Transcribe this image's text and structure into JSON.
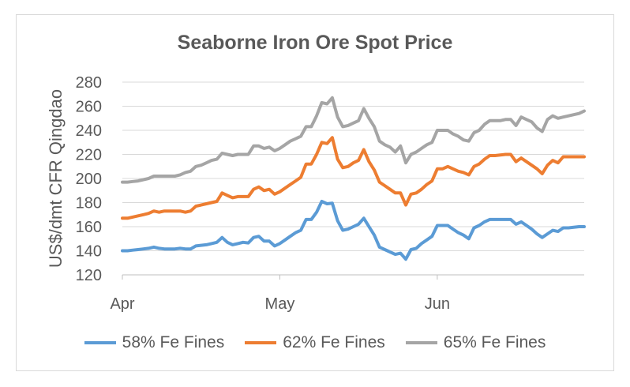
{
  "chart_data": {
    "type": "line",
    "title": "Seaborne Iron Ore Spot Price",
    "xlabel": "",
    "ylabel": "US$/dmt CFR Qingdao",
    "ylim": [
      120,
      280
    ],
    "yticks": [
      120,
      140,
      160,
      180,
      200,
      220,
      240,
      260,
      280
    ],
    "xlim": [
      0,
      88
    ],
    "xticks": [
      {
        "x": 0,
        "label": "Apr"
      },
      {
        "x": 30,
        "label": "May"
      },
      {
        "x": 60,
        "label": "Jun"
      }
    ],
    "grid": true,
    "legend": "bottom",
    "series": [
      {
        "name": "58% Fe Fines",
        "color": "#5b9bd5",
        "points": [
          [
            0,
            140
          ],
          [
            1,
            140
          ],
          [
            2,
            140.5
          ],
          [
            3,
            141
          ],
          [
            4,
            141.5
          ],
          [
            5,
            142
          ],
          [
            6,
            143
          ],
          [
            7,
            142
          ],
          [
            8,
            141.5
          ],
          [
            9,
            141.5
          ],
          [
            10,
            141.5
          ],
          [
            11,
            142
          ],
          [
            12,
            141.5
          ],
          [
            13,
            141.5
          ],
          [
            14,
            144
          ],
          [
            15,
            144.5
          ],
          [
            16,
            145
          ],
          [
            17,
            146
          ],
          [
            18,
            147
          ],
          [
            19,
            151
          ],
          [
            20,
            147
          ],
          [
            21,
            145
          ],
          [
            22,
            146
          ],
          [
            23,
            147
          ],
          [
            24,
            146.5
          ],
          [
            25,
            151
          ],
          [
            26,
            152
          ],
          [
            27,
            148
          ],
          [
            28,
            148
          ],
          [
            29,
            144
          ],
          [
            30,
            146
          ],
          [
            31,
            149
          ],
          [
            32,
            152
          ],
          [
            33,
            155
          ],
          [
            34,
            157
          ],
          [
            35,
            166
          ],
          [
            36,
            166
          ],
          [
            37,
            172
          ],
          [
            38,
            181
          ],
          [
            39,
            179
          ],
          [
            40,
            179.5
          ],
          [
            41,
            165
          ],
          [
            42,
            157
          ],
          [
            43,
            158
          ],
          [
            44,
            160
          ],
          [
            45,
            162
          ],
          [
            46,
            167
          ],
          [
            47,
            160
          ],
          [
            48,
            153
          ],
          [
            49,
            143
          ],
          [
            50,
            141
          ],
          [
            51,
            139
          ],
          [
            52,
            137
          ],
          [
            53,
            138
          ],
          [
            54,
            133
          ],
          [
            55,
            141
          ],
          [
            56,
            142
          ],
          [
            57,
            146
          ],
          [
            58,
            149
          ],
          [
            59,
            152
          ],
          [
            60,
            161
          ],
          [
            61,
            161
          ],
          [
            62,
            161
          ],
          [
            63,
            158
          ],
          [
            64,
            155
          ],
          [
            65,
            153
          ],
          [
            66,
            150
          ],
          [
            67,
            159
          ],
          [
            68,
            161
          ],
          [
            69,
            164
          ],
          [
            70,
            166
          ],
          [
            71,
            166
          ],
          [
            72,
            166
          ],
          [
            73,
            166
          ],
          [
            74,
            166
          ],
          [
            75,
            162
          ],
          [
            76,
            164
          ],
          [
            77,
            161
          ],
          [
            78,
            158
          ],
          [
            79,
            154
          ],
          [
            80,
            151
          ],
          [
            81,
            154
          ],
          [
            82,
            157
          ],
          [
            83,
            156
          ],
          [
            84,
            159
          ],
          [
            85,
            159
          ],
          [
            86,
            159.5
          ],
          [
            87,
            160
          ],
          [
            88,
            160
          ]
        ]
      },
      {
        "name": "62% Fe Fines",
        "color": "#ed7d31",
        "points": [
          [
            0,
            167
          ],
          [
            1,
            167
          ],
          [
            2,
            168
          ],
          [
            3,
            169
          ],
          [
            4,
            170
          ],
          [
            5,
            171
          ],
          [
            6,
            173
          ],
          [
            7,
            172
          ],
          [
            8,
            173
          ],
          [
            9,
            173
          ],
          [
            10,
            173
          ],
          [
            11,
            173
          ],
          [
            12,
            172
          ],
          [
            13,
            173
          ],
          [
            14,
            177
          ],
          [
            15,
            178
          ],
          [
            16,
            179
          ],
          [
            17,
            180
          ],
          [
            18,
            181
          ],
          [
            19,
            188
          ],
          [
            20,
            186
          ],
          [
            21,
            184
          ],
          [
            22,
            185
          ],
          [
            23,
            185
          ],
          [
            24,
            185
          ],
          [
            25,
            191
          ],
          [
            26,
            193
          ],
          [
            27,
            190
          ],
          [
            28,
            191
          ],
          [
            29,
            187
          ],
          [
            30,
            189
          ],
          [
            31,
            192
          ],
          [
            32,
            195
          ],
          [
            33,
            198
          ],
          [
            34,
            201
          ],
          [
            35,
            212
          ],
          [
            36,
            212
          ],
          [
            37,
            220
          ],
          [
            38,
            230
          ],
          [
            39,
            229
          ],
          [
            40,
            234
          ],
          [
            41,
            216
          ],
          [
            42,
            209
          ],
          [
            43,
            210
          ],
          [
            44,
            213
          ],
          [
            45,
            215
          ],
          [
            46,
            224
          ],
          [
            47,
            214
          ],
          [
            48,
            207
          ],
          [
            49,
            197
          ],
          [
            50,
            194
          ],
          [
            51,
            191
          ],
          [
            52,
            188
          ],
          [
            53,
            188
          ],
          [
            54,
            178
          ],
          [
            55,
            187
          ],
          [
            56,
            188
          ],
          [
            57,
            191
          ],
          [
            58,
            195
          ],
          [
            59,
            198
          ],
          [
            60,
            208
          ],
          [
            61,
            208
          ],
          [
            62,
            210
          ],
          [
            63,
            208
          ],
          [
            64,
            206
          ],
          [
            65,
            205
          ],
          [
            66,
            203
          ],
          [
            67,
            210
          ],
          [
            68,
            212
          ],
          [
            69,
            216
          ],
          [
            70,
            219
          ],
          [
            71,
            219
          ],
          [
            72,
            219.5
          ],
          [
            73,
            220
          ],
          [
            74,
            220
          ],
          [
            75,
            214
          ],
          [
            76,
            217
          ],
          [
            77,
            214
          ],
          [
            78,
            211
          ],
          [
            79,
            208
          ],
          [
            80,
            204
          ],
          [
            81,
            211
          ],
          [
            82,
            215
          ],
          [
            83,
            213
          ],
          [
            84,
            218
          ],
          [
            85,
            218
          ],
          [
            86,
            218
          ],
          [
            87,
            218
          ],
          [
            88,
            218
          ]
        ]
      },
      {
        "name": "65% Fe Fines",
        "color": "#a5a5a5",
        "points": [
          [
            0,
            197
          ],
          [
            1,
            197
          ],
          [
            2,
            197.5
          ],
          [
            3,
            198
          ],
          [
            4,
            199
          ],
          [
            5,
            200
          ],
          [
            6,
            202
          ],
          [
            7,
            202
          ],
          [
            8,
            202
          ],
          [
            9,
            202
          ],
          [
            10,
            202
          ],
          [
            11,
            203
          ],
          [
            12,
            205
          ],
          [
            13,
            206
          ],
          [
            14,
            210
          ],
          [
            15,
            211
          ],
          [
            16,
            213
          ],
          [
            17,
            215
          ],
          [
            18,
            216
          ],
          [
            19,
            221
          ],
          [
            20,
            220
          ],
          [
            21,
            219
          ],
          [
            22,
            220
          ],
          [
            23,
            220
          ],
          [
            24,
            220
          ],
          [
            25,
            227
          ],
          [
            26,
            227
          ],
          [
            27,
            225
          ],
          [
            28,
            226
          ],
          [
            29,
            223
          ],
          [
            30,
            225
          ],
          [
            31,
            228
          ],
          [
            32,
            231
          ],
          [
            33,
            233
          ],
          [
            34,
            235
          ],
          [
            35,
            243
          ],
          [
            36,
            243
          ],
          [
            37,
            252
          ],
          [
            38,
            263
          ],
          [
            39,
            262
          ],
          [
            40,
            267
          ],
          [
            41,
            251
          ],
          [
            42,
            243
          ],
          [
            43,
            244
          ],
          [
            44,
            246
          ],
          [
            45,
            248
          ],
          [
            46,
            258
          ],
          [
            47,
            250
          ],
          [
            48,
            243
          ],
          [
            49,
            231
          ],
          [
            50,
            228
          ],
          [
            51,
            226
          ],
          [
            52,
            222
          ],
          [
            53,
            227
          ],
          [
            54,
            213
          ],
          [
            55,
            220
          ],
          [
            56,
            222
          ],
          [
            57,
            225
          ],
          [
            58,
            228
          ],
          [
            59,
            230
          ],
          [
            60,
            240
          ],
          [
            61,
            240
          ],
          [
            62,
            240
          ],
          [
            63,
            237
          ],
          [
            64,
            235
          ],
          [
            65,
            232
          ],
          [
            66,
            231
          ],
          [
            67,
            238
          ],
          [
            68,
            240
          ],
          [
            69,
            245
          ],
          [
            70,
            248
          ],
          [
            71,
            248
          ],
          [
            72,
            248
          ],
          [
            73,
            249
          ],
          [
            74,
            249
          ],
          [
            75,
            244
          ],
          [
            76,
            251
          ],
          [
            77,
            249
          ],
          [
            78,
            247
          ],
          [
            79,
            242
          ],
          [
            80,
            239
          ],
          [
            81,
            249
          ],
          [
            82,
            252
          ],
          [
            83,
            250
          ],
          [
            84,
            251
          ],
          [
            85,
            252
          ],
          [
            86,
            253
          ],
          [
            87,
            254
          ],
          [
            88,
            256
          ]
        ]
      }
    ]
  }
}
